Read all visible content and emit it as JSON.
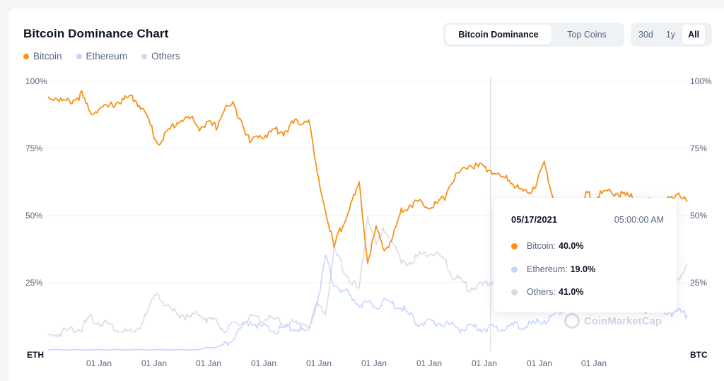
{
  "header": {
    "title": "Bitcoin Dominance Chart"
  },
  "legend": [
    {
      "label": "Bitcoin",
      "color": "#f7931a"
    },
    {
      "label": "Ethereum",
      "color": "#c6d4fb"
    },
    {
      "label": "Others",
      "color": "#d8dbe4"
    }
  ],
  "view_toggle": {
    "options": [
      "Bitcoin Dominance",
      "Top Coins"
    ],
    "selected": "Bitcoin Dominance"
  },
  "range_toggle": {
    "options": [
      "30d",
      "1y",
      "All"
    ],
    "selected": "All"
  },
  "tooltip": {
    "date": "05/17/2021",
    "time": "05:00:00 AM",
    "rows": [
      {
        "label": "Bitcoin:",
        "value": "40.0%",
        "color": "#f7931a"
      },
      {
        "label": "Ethereum:",
        "value": "19.0%",
        "color": "#c6d4fb"
      },
      {
        "label": "Others:",
        "value": "41.0%",
        "color": "#d8dbe4"
      }
    ]
  },
  "watermark": "CoinMarketCap",
  "chart_data": {
    "type": "line",
    "y_left_ticks": [
      "100%",
      "75%",
      "50%",
      "25%"
    ],
    "y_right_ticks": [
      "100%",
      "75%",
      "50%",
      "25%"
    ],
    "y_left_label": "ETH",
    "y_right_label": "BTC",
    "x_ticks": [
      "01 Jan",
      "01 Jan",
      "01 Jan",
      "01 Jan",
      "01 Jan",
      "01 Jan",
      "01 Jan",
      "01 Jan",
      "01 Jan",
      "01 Jan",
      "01 Jan"
    ],
    "ylim": [
      0,
      100
    ],
    "grid": true,
    "legend_position": "top-left",
    "series": [
      {
        "name": "Bitcoin",
        "color": "#f7931a",
        "values": [
          94,
          94,
          92,
          93,
          95,
          88,
          90,
          90,
          92,
          93,
          94,
          91,
          85,
          77,
          80,
          84,
          86,
          86,
          83,
          84,
          83,
          90,
          91,
          86,
          77,
          80,
          80,
          82,
          81,
          84,
          85,
          86,
          65,
          52,
          38,
          47,
          54,
          61,
          33,
          45,
          37,
          42,
          52,
          54,
          55,
          54,
          54,
          56,
          63,
          66,
          69,
          68,
          68,
          66,
          64,
          63,
          60,
          58,
          62,
          69,
          58,
          51,
          40,
          44,
          58,
          57,
          58,
          59,
          58,
          57,
          56,
          55,
          55,
          54,
          56,
          59,
          55
        ]
      },
      {
        "name": "Ethereum",
        "color": "#c6d4fb",
        "values": [
          0,
          0,
          0,
          0,
          0,
          0,
          0,
          0,
          0,
          0,
          0,
          0,
          0,
          0,
          0,
          0,
          0,
          0,
          0,
          1,
          1,
          2,
          5,
          8,
          11,
          9,
          8,
          7,
          8,
          8,
          8,
          8,
          18,
          34,
          25,
          22,
          20,
          17,
          17,
          16,
          18,
          17,
          16,
          13,
          10,
          10,
          10,
          10,
          9,
          8,
          8,
          8,
          8,
          8,
          8,
          9,
          9,
          9,
          10,
          11,
          12,
          14,
          18,
          19,
          17,
          17,
          16,
          17,
          16,
          17,
          16,
          15,
          15,
          15,
          14,
          14,
          13
        ]
      },
      {
        "name": "Others",
        "color": "#d8dbe4",
        "values": [
          5,
          6,
          7,
          8,
          8,
          12,
          10,
          10,
          8,
          7,
          6,
          9,
          15,
          22,
          16,
          14,
          13,
          12,
          14,
          11,
          11,
          7,
          9,
          10,
          12,
          11,
          12,
          11,
          10,
          10,
          9,
          8,
          17,
          14,
          37,
          31,
          26,
          22,
          50,
          39,
          45,
          41,
          32,
          33,
          35,
          36,
          36,
          34,
          28,
          26,
          23,
          24,
          24,
          26,
          28,
          28,
          31,
          33,
          28,
          20,
          30,
          35,
          42,
          37,
          25,
          26,
          26,
          24,
          26,
          26,
          28,
          30,
          30,
          31,
          30,
          27,
          32
        ]
      }
    ]
  }
}
